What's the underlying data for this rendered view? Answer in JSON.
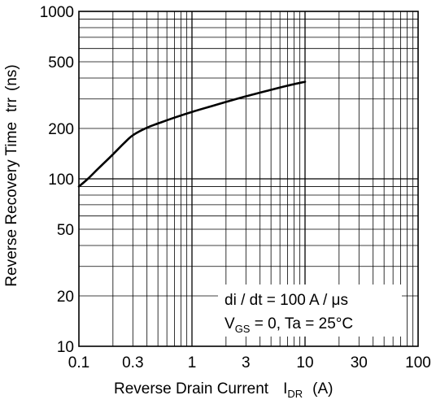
{
  "chart_data": {
    "type": "line",
    "xscale": "log",
    "yscale": "log",
    "xlim": [
      0.1,
      100
    ],
    "ylim": [
      10,
      1000
    ],
    "x_ticks": [
      {
        "value": 0.1,
        "label": "0.1"
      },
      {
        "value": 0.3,
        "label": "0.3"
      },
      {
        "value": 1,
        "label": "1"
      },
      {
        "value": 3,
        "label": "3"
      },
      {
        "value": 10,
        "label": "10"
      },
      {
        "value": 30,
        "label": "30"
      },
      {
        "value": 100,
        "label": "100"
      }
    ],
    "y_ticks": [
      {
        "value": 10,
        "label": "10"
      },
      {
        "value": 20,
        "label": "20"
      },
      {
        "value": 50,
        "label": "50"
      },
      {
        "value": 100,
        "label": "100"
      },
      {
        "value": 200,
        "label": "200"
      },
      {
        "value": 500,
        "label": "500"
      },
      {
        "value": 1000,
        "label": "1000"
      }
    ],
    "grid": true,
    "xlabel": {
      "main": "Reverse Drain Current",
      "symbol": "I",
      "symbol_sub": "DR",
      "unit": "(A)"
    },
    "ylabel": {
      "main": "Reverse Recovery Time",
      "symbol": "trr",
      "unit": "(ns)"
    },
    "annotations": {
      "line1": "di / dt = 100 A / μs",
      "line2_pre": "V",
      "line2_sub": "GS",
      "line2_post": " = 0, Ta = 25°C"
    },
    "series": [
      {
        "color": "#000000",
        "x": [
          0.1,
          0.12,
          0.15,
          0.2,
          0.25,
          0.3,
          0.4,
          0.5,
          0.7,
          1.0,
          1.5,
          2.0,
          3.0,
          5.0,
          7.0,
          10.0
        ],
        "y": [
          90,
          100,
          116,
          140,
          163,
          182,
          202,
          214,
          232,
          251,
          272,
          288,
          311,
          340,
          360,
          380
        ]
      }
    ]
  }
}
